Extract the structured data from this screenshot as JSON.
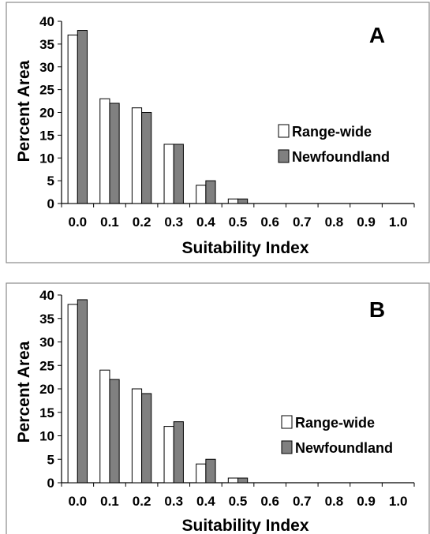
{
  "chart_data": [
    {
      "panel_label": "A",
      "type": "bar",
      "categories": [
        "0.0",
        "0.1",
        "0.2",
        "0.3",
        "0.4",
        "0.5",
        "0.6",
        "0.7",
        "0.8",
        "0.9",
        "1.0"
      ],
      "series": [
        {
          "name": "Range-wide",
          "values": [
            37,
            23,
            21,
            13,
            4,
            1,
            0,
            0,
            0,
            0,
            0
          ],
          "color": "#ffffff"
        },
        {
          "name": "Newfoundland",
          "values": [
            38,
            22,
            20,
            13,
            5,
            1,
            0,
            0,
            0,
            0,
            0
          ],
          "color": "#808080"
        }
      ],
      "xlabel": "Suitability Index",
      "ylabel": "Percent Area",
      "ylim": [
        0,
        40
      ],
      "yticks": [
        0,
        5,
        10,
        15,
        20,
        25,
        30,
        35,
        40
      ],
      "grid": false,
      "legend_position": "right"
    },
    {
      "panel_label": "B",
      "type": "bar",
      "categories": [
        "0.0",
        "0.1",
        "0.2",
        "0.3",
        "0.4",
        "0.5",
        "0.6",
        "0.7",
        "0.8",
        "0.9",
        "1.0"
      ],
      "series": [
        {
          "name": "Range-wide",
          "values": [
            38,
            24,
            20,
            12,
            4,
            1,
            0,
            0,
            0,
            0,
            0
          ],
          "color": "#ffffff"
        },
        {
          "name": "Newfoundland",
          "values": [
            39,
            22,
            19,
            13,
            5,
            1,
            0,
            0,
            0,
            0,
            0
          ],
          "color": "#808080"
        }
      ],
      "xlabel": "Suitability Index",
      "ylabel": "Percent Area",
      "ylim": [
        0,
        40
      ],
      "yticks": [
        0,
        5,
        10,
        15,
        20,
        25,
        30,
        35,
        40
      ],
      "grid": false,
      "legend_position": "right"
    }
  ]
}
